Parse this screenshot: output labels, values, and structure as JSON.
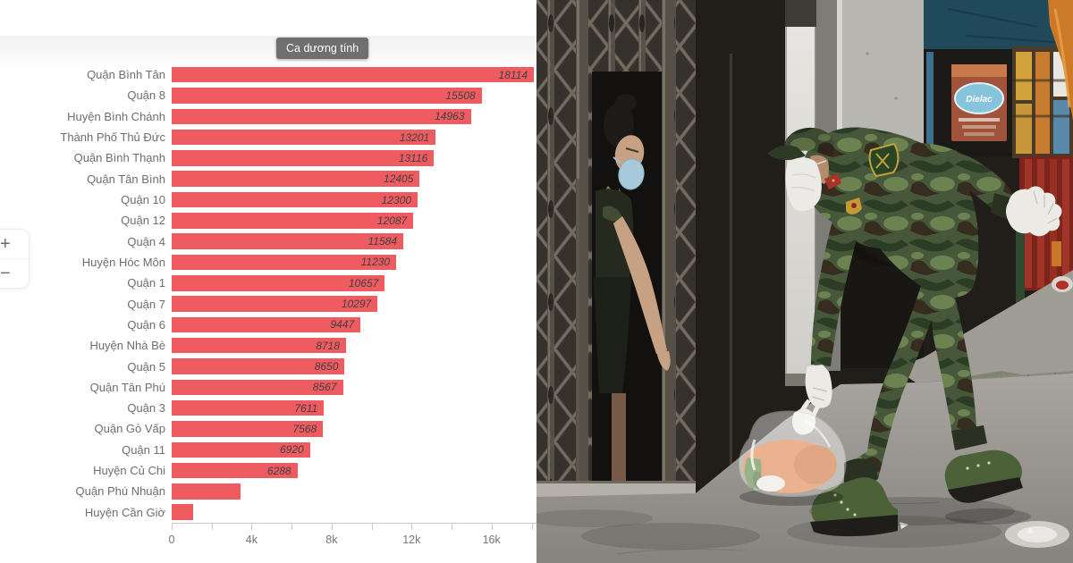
{
  "chart": {
    "tooltip_label": "Ca dương tính",
    "zoom_in_label": "+",
    "zoom_out_label": "−",
    "x_axis": {
      "major_ticks": [
        {
          "value": 0,
          "label": "0"
        },
        {
          "value": 4000,
          "label": "4k"
        },
        {
          "value": 8000,
          "label": "8k"
        },
        {
          "value": 12000,
          "label": "12k"
        },
        {
          "value": 16000,
          "label": "16k"
        }
      ],
      "minor_tick_step": 2000,
      "minor_tick_max": 18000
    }
  },
  "chart_data": {
    "type": "bar",
    "orientation": "horizontal",
    "title": "Ca dương tính",
    "categories": [
      "Quận Bình Tân",
      "Quận 8",
      "Huyện Bình Chánh",
      "Thành Phố Thủ Đức",
      "Quận Bình Thạnh",
      "Quận Tân Bình",
      "Quận 10",
      "Quận 12",
      "Quận 4",
      "Huyện Hóc Môn",
      "Quận 1",
      "Quận 7",
      "Quận 6",
      "Huyện Nhà Bè",
      "Quận 5",
      "Quận Tân Phú",
      "Quận 3",
      "Quận Gò Vấp",
      "Quận 11",
      "Huyện Củ Chi",
      "Quận Phú Nhuận",
      "Huyện Cần Giờ"
    ],
    "values": [
      18114,
      15508,
      14963,
      13201,
      13116,
      12405,
      12300,
      12087,
      11584,
      11230,
      10657,
      10297,
      9447,
      8718,
      8650,
      8567,
      7611,
      7568,
      6920,
      6288,
      3430,
      1090
    ],
    "value_labels": [
      "18114",
      "15508",
      "14963",
      "13201",
      "13116",
      "12405",
      "12300",
      "12087",
      "11584",
      "11230",
      "10657",
      "10297",
      "9447",
      "8718",
      "8650",
      "8567",
      "7611",
      "7568",
      "6920",
      "6288",
      "",
      ""
    ],
    "values_estimated_for_unlabeled_bars": [
      20,
      21
    ],
    "xlim": [
      0,
      18300
    ],
    "bar_color": "#ee5c62",
    "grid": false,
    "legend": false
  },
  "photo": {
    "sign_text": "Dielac"
  },
  "colors": {
    "bar": "#ee5c62",
    "tooltip_bg": "#6f6f6f",
    "value_label": "#3f3f3f",
    "category_label": "#6e6e6e",
    "axis_label": "#757575"
  }
}
